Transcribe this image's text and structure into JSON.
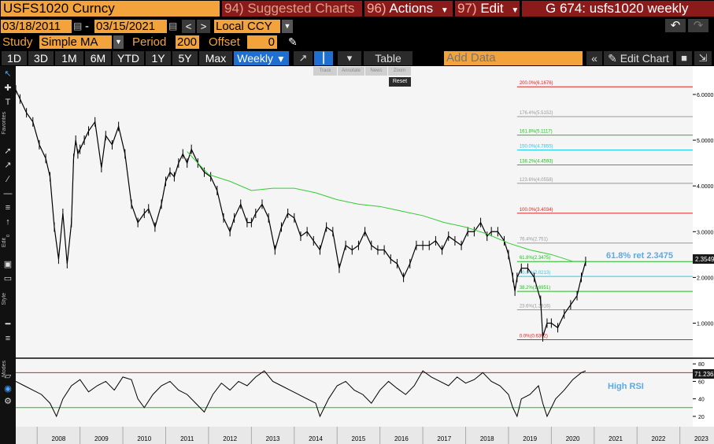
{
  "header": {
    "security": "USFS1020 Curncy",
    "suggested_num": "94)",
    "suggested_label": "Suggested Charts",
    "actions_num": "96)",
    "actions_label": "Actions",
    "edit_num": "97)",
    "edit_label": "Edit",
    "chart_title": "G 674: usfs1020 weekly"
  },
  "dates": {
    "start": "03/18/2011",
    "end": "03/15/2021",
    "dash": "-",
    "currency": "Local CCY"
  },
  "study": {
    "label": "Study",
    "value": "Simple MA",
    "period_label": "Period",
    "period_value": "200",
    "offset_label": "Offset",
    "offset_value": "0"
  },
  "toolbar": {
    "ranges": [
      "1D",
      "3D",
      "1M",
      "6M",
      "YTD",
      "1Y",
      "5Y",
      "Max"
    ],
    "frequency": "Weekly",
    "table_label": "Table",
    "add_data_placeholder": "Add Data",
    "edit_chart_label": "Edit Chart",
    "popup_items": [
      "Track",
      "Annotate",
      "News",
      "Zoom"
    ],
    "reset_label": "Reset"
  },
  "sidebar_labels": {
    "favorites": "Favorites",
    "edit": "Edit",
    "style": "Style",
    "modes": "Modes"
  },
  "colors": {
    "orange": "#f2a33c",
    "red_header": "#8b1b1b",
    "active_blue": "#1d6fd1",
    "price_line": "#000000",
    "ma_line": "#33cc33",
    "fib_red": "#dd2222",
    "fib_green": "#22bb22",
    "fib_cyan": "#22ccee",
    "fib_grey": "#999999",
    "annotation_blue": "#5aaae6"
  },
  "chart_data": [
    {
      "type": "line",
      "title": "",
      "y_ticks": [
        "6.0000",
        "5.0000",
        "4.0000",
        "3.0000",
        "2.0000",
        "1.0000"
      ],
      "y_tick_values": [
        6,
        5,
        4,
        3,
        2,
        1
      ],
      "ylim": [
        0.32,
        6.55
      ],
      "x_ticks": [
        "2008",
        "2009",
        "2010",
        "2011",
        "2012",
        "2013",
        "2014",
        "2015",
        "2016",
        "2017",
        "2018",
        "2019",
        "2020",
        "2021",
        "2022",
        "2023"
      ],
      "xlim": [
        2007.5,
        2023.3
      ],
      "grid": false,
      "series": [
        {
          "values_x": [
            2007.5,
            2007.6,
            2007.75,
            2007.9,
            2008.05,
            2008.2,
            2008.3,
            2008.4,
            2008.5,
            2008.6,
            2008.7,
            2008.8,
            2008.85,
            2008.9,
            2008.95,
            2009.0,
            2009.1,
            2009.2,
            2009.35,
            2009.5,
            2009.6,
            2009.75,
            2009.9,
            2010.05,
            2010.2,
            2010.35,
            2010.5,
            2010.6,
            2010.75,
            2010.9,
            2011.0,
            2011.1,
            2011.2,
            2011.3,
            2011.4,
            2011.5,
            2011.6,
            2011.75,
            2011.9,
            2012.05,
            2012.2,
            2012.35,
            2012.5,
            2012.6,
            2012.75,
            2012.9,
            2013.0,
            2013.1,
            2013.25,
            2013.4,
            2013.55,
            2013.7,
            2013.85,
            2014.0,
            2014.15,
            2014.3,
            2014.45,
            2014.6,
            2014.75,
            2014.9,
            2015.05,
            2015.2,
            2015.35,
            2015.5,
            2015.65,
            2015.8,
            2015.95,
            2016.1,
            2016.25,
            2016.4,
            2016.55,
            2016.7,
            2016.85,
            2017.0,
            2017.15,
            2017.3,
            2017.45,
            2017.6,
            2017.75,
            2017.9,
            2018.05,
            2018.2,
            2018.35,
            2018.5,
            2018.6,
            2018.75,
            2018.9,
            2019.0,
            2019.1,
            2019.15,
            2019.2,
            2019.3,
            2019.45,
            2019.6,
            2019.75,
            2019.8,
            2019.9,
            2020.0,
            2020.15,
            2020.3,
            2020.45,
            2020.6,
            2020.7,
            2020.8
          ],
          "values_y": [
            6.1,
            5.9,
            5.6,
            5.4,
            4.9,
            4.6,
            4.2,
            3.1,
            2.4,
            3.4,
            2.3,
            3.2,
            4.6,
            5.0,
            4.7,
            4.8,
            5.0,
            5.2,
            5.4,
            4.4,
            5.1,
            4.9,
            5.3,
            4.7,
            3.6,
            3.2,
            3.4,
            3.5,
            3.1,
            3.6,
            4.1,
            4.3,
            4.2,
            4.5,
            4.7,
            4.5,
            4.8,
            4.5,
            4.3,
            4.2,
            3.9,
            3.3,
            3.0,
            3.3,
            3.6,
            3.2,
            3.2,
            3.4,
            3.6,
            3.3,
            2.6,
            3.1,
            3.4,
            3.3,
            2.9,
            3.0,
            2.8,
            2.6,
            3.1,
            3.0,
            2.2,
            2.7,
            2.6,
            2.7,
            3.0,
            2.7,
            2.6,
            2.6,
            2.4,
            2.3,
            2.0,
            2.3,
            2.7,
            2.7,
            2.7,
            2.8,
            2.6,
            2.9,
            2.8,
            2.7,
            3.0,
            3.0,
            3.2,
            2.9,
            3.0,
            3.0,
            2.8,
            2.5,
            2.0,
            1.7,
            2.0,
            2.2,
            2.2,
            2.0,
            1.5,
            0.7,
            1.0,
            1.0,
            0.9,
            1.2,
            1.4,
            1.6,
            2.0,
            2.35
          ]
        },
        {
          "values_x": [
            2011.5,
            2012.0,
            2012.5,
            2013.0,
            2013.5,
            2014.0,
            2014.5,
            2015.0,
            2015.5,
            2016.0,
            2016.5,
            2017.0,
            2017.5,
            2018.0,
            2018.5,
            2019.0,
            2019.5,
            2020.0,
            2020.5,
            2020.8
          ],
          "values_y": [
            4.75,
            4.25,
            4.1,
            3.9,
            3.95,
            3.95,
            3.85,
            3.7,
            3.6,
            3.55,
            3.45,
            3.35,
            3.2,
            3.1,
            2.95,
            2.75,
            2.6,
            2.5,
            2.35,
            2.35
          ]
        }
      ],
      "fib_levels": [
        {
          "label": "200.0%(6.1676)",
          "value": 6.1676,
          "color": "red"
        },
        {
          "label": "176.4%(5.5152)",
          "value": 5.5152,
          "color": "grey"
        },
        {
          "label": "161.8%(5.1117)",
          "value": 5.1117,
          "color": "green"
        },
        {
          "label": "150.0%(4.7855)",
          "value": 4.7855,
          "color": "cyan"
        },
        {
          "label": "138.2%(4.4593)",
          "value": 4.4593,
          "color": "green"
        },
        {
          "label": "123.6%(4.0558)",
          "value": 4.0558,
          "color": "grey"
        },
        {
          "label": "100.0%(3.4034)",
          "value": 3.4034,
          "color": "red"
        },
        {
          "label": "76.4%(2.751)",
          "value": 2.751,
          "color": "grey"
        },
        {
          "label": "61.8%(2.3475)",
          "value": 2.3475,
          "color": "green"
        },
        {
          "label": "50.0%(2.0213)",
          "value": 2.0213,
          "color": "cyan"
        },
        {
          "label": "38.2%(1.6951)",
          "value": 1.6951,
          "color": "green"
        },
        {
          "label": "23.6%(1.2916)",
          "value": 1.2916,
          "color": "grey"
        },
        {
          "label": "0.0%(0.6392)",
          "value": 0.6392,
          "color": "red"
        }
      ],
      "fib_start_x": 2019.2,
      "annotation": "61.8% ret 2.3475",
      "last_value": "2.3549"
    },
    {
      "type": "line",
      "title": "",
      "y_ticks": [
        "80",
        "60",
        "40",
        "20"
      ],
      "y_tick_values": [
        80,
        60,
        40,
        20
      ],
      "ylim": [
        10,
        82
      ],
      "overbought": 70,
      "oversold": 30,
      "annotation": "High RSI",
      "last_value": "71.2363",
      "series": [
        {
          "values_x": [
            2007.5,
            2007.7,
            2007.9,
            2008.1,
            2008.3,
            2008.45,
            2008.6,
            2008.8,
            2009.0,
            2009.2,
            2009.4,
            2009.6,
            2009.8,
            2010.0,
            2010.2,
            2010.35,
            2010.5,
            2010.7,
            2010.9,
            2011.1,
            2011.3,
            2011.5,
            2011.7,
            2011.9,
            2012.1,
            2012.3,
            2012.5,
            2012.7,
            2012.9,
            2013.1,
            2013.3,
            2013.5,
            2013.7,
            2013.9,
            2014.1,
            2014.3,
            2014.5,
            2014.6,
            2014.8,
            2015.0,
            2015.2,
            2015.4,
            2015.6,
            2015.8,
            2016.0,
            2016.2,
            2016.4,
            2016.6,
            2016.8,
            2017.0,
            2017.2,
            2017.4,
            2017.6,
            2017.8,
            2018.0,
            2018.2,
            2018.4,
            2018.6,
            2018.8,
            2019.0,
            2019.1,
            2019.2,
            2019.3,
            2019.5,
            2019.7,
            2019.8,
            2019.9,
            2020.1,
            2020.3,
            2020.5,
            2020.7,
            2020.8
          ],
          "values_y": [
            60,
            55,
            50,
            45,
            35,
            20,
            40,
            55,
            62,
            48,
            55,
            60,
            50,
            65,
            62,
            40,
            30,
            45,
            55,
            60,
            50,
            45,
            35,
            25,
            45,
            58,
            50,
            60,
            55,
            65,
            72,
            60,
            55,
            50,
            45,
            40,
            35,
            20,
            40,
            55,
            60,
            50,
            45,
            35,
            50,
            60,
            52,
            45,
            55,
            72,
            65,
            60,
            55,
            65,
            58,
            62,
            70,
            60,
            55,
            45,
            30,
            20,
            40,
            45,
            55,
            35,
            20,
            40,
            50,
            62,
            70,
            72
          ]
        }
      ]
    }
  ]
}
